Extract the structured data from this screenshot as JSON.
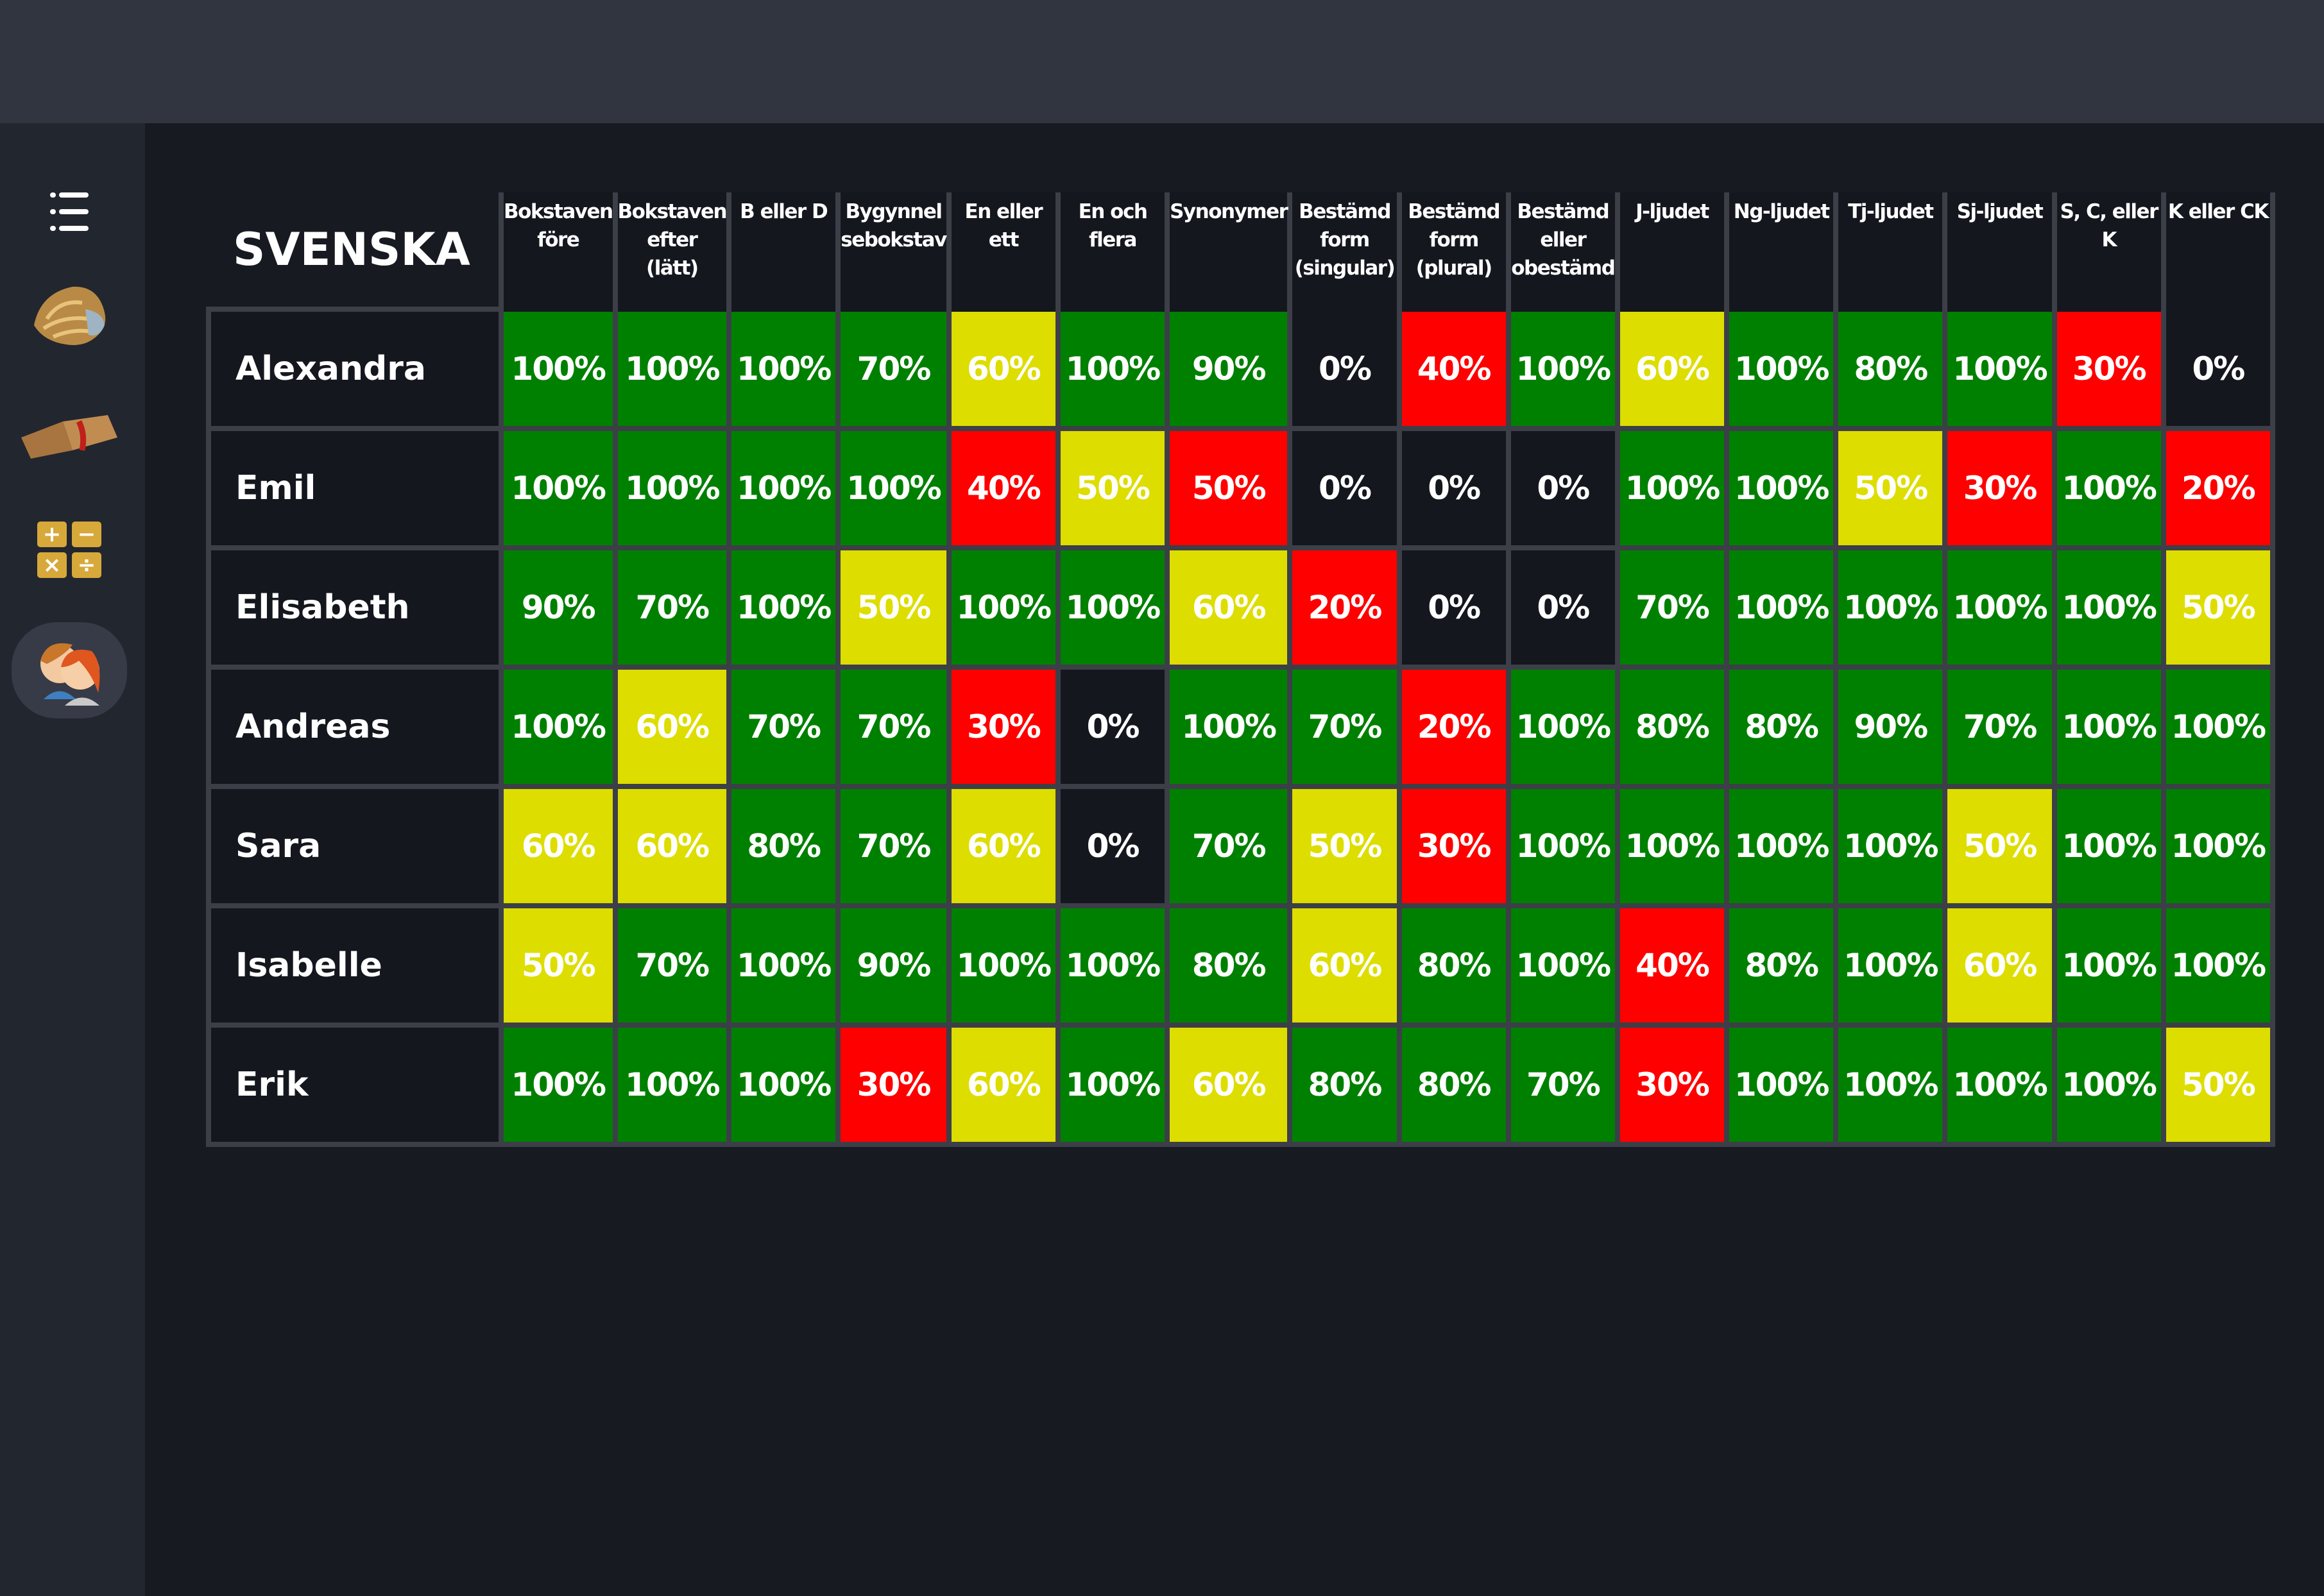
{
  "sidebar": {
    "items": [
      {
        "name": "menu-icon"
      },
      {
        "name": "lion-icon"
      },
      {
        "name": "book-icon"
      },
      {
        "name": "math-icon",
        "symbols": [
          "+",
          "−",
          "×",
          "÷"
        ]
      },
      {
        "name": "students-icon",
        "active": true
      }
    ]
  },
  "colors": {
    "green": "#008000",
    "yellow": "#dddd00",
    "red": "#ff0000",
    "none": "#15171f"
  },
  "table": {
    "title": "SVENSKA",
    "columns": [
      "Bokstaven\nföre",
      "Bokstaven\nefter\n(lätt)",
      "B eller D",
      "Bygynnel\nsebokstav",
      "En eller\nett",
      "En och\nflera",
      "Synonymer",
      "Bestämd\nform\n(singular)",
      "Bestämd\nform\n(plural)",
      "Bestämd\neller\nobestämd",
      "J-ljudet",
      "Ng-ljudet",
      "Tj-ljudet",
      "Sj-ljudet",
      "S, C, eller\nK",
      "K eller CK"
    ],
    "rows": [
      {
        "name": "Alexandra",
        "values": [
          "100%",
          "100%",
          "100%",
          "70%",
          "60%",
          "100%",
          "90%",
          "0%",
          "40%",
          "100%",
          "60%",
          "100%",
          "80%",
          "100%",
          "30%",
          "0%"
        ],
        "status": [
          "g",
          "g",
          "g",
          "g",
          "y",
          "g",
          "g",
          "d",
          "r",
          "g",
          "y",
          "g",
          "g",
          "g",
          "r",
          "d"
        ]
      },
      {
        "name": "Emil",
        "values": [
          "100%",
          "100%",
          "100%",
          "100%",
          "40%",
          "50%",
          "50%",
          "0%",
          "0%",
          "0%",
          "100%",
          "100%",
          "50%",
          "30%",
          "100%",
          "20%"
        ],
        "status": [
          "g",
          "g",
          "g",
          "g",
          "r",
          "y",
          "r",
          "d",
          "d",
          "d",
          "g",
          "g",
          "y",
          "r",
          "g",
          "r"
        ]
      },
      {
        "name": "Elisabeth",
        "values": [
          "90%",
          "70%",
          "100%",
          "50%",
          "100%",
          "100%",
          "60%",
          "20%",
          "0%",
          "0%",
          "70%",
          "100%",
          "100%",
          "100%",
          "100%",
          "50%"
        ],
        "status": [
          "g",
          "g",
          "g",
          "y",
          "g",
          "g",
          "y",
          "r",
          "d",
          "d",
          "g",
          "g",
          "g",
          "g",
          "g",
          "y"
        ]
      },
      {
        "name": "Andreas",
        "values": [
          "100%",
          "60%",
          "70%",
          "70%",
          "30%",
          "0%",
          "100%",
          "70%",
          "20%",
          "100%",
          "80%",
          "80%",
          "90%",
          "70%",
          "100%",
          "100%"
        ],
        "status": [
          "g",
          "y",
          "g",
          "g",
          "r",
          "d",
          "g",
          "g",
          "r",
          "g",
          "g",
          "g",
          "g",
          "g",
          "g",
          "g"
        ]
      },
      {
        "name": "Sara",
        "values": [
          "60%",
          "60%",
          "80%",
          "70%",
          "60%",
          "0%",
          "70%",
          "50%",
          "30%",
          "100%",
          "100%",
          "100%",
          "100%",
          "50%",
          "100%",
          "100%"
        ],
        "status": [
          "y",
          "y",
          "g",
          "g",
          "y",
          "d",
          "g",
          "y",
          "r",
          "g",
          "g",
          "g",
          "g",
          "y",
          "g",
          "g"
        ]
      },
      {
        "name": "Isabelle",
        "values": [
          "50%",
          "70%",
          "100%",
          "90%",
          "100%",
          "100%",
          "80%",
          "60%",
          "80%",
          "100%",
          "40%",
          "80%",
          "100%",
          "60%",
          "100%",
          "100%"
        ],
        "status": [
          "y",
          "g",
          "g",
          "g",
          "g",
          "g",
          "g",
          "y",
          "g",
          "g",
          "r",
          "g",
          "g",
          "y",
          "g",
          "g"
        ]
      },
      {
        "name": "Erik",
        "values": [
          "100%",
          "100%",
          "100%",
          "30%",
          "60%",
          "100%",
          "60%",
          "80%",
          "80%",
          "70%",
          "30%",
          "100%",
          "100%",
          "100%",
          "100%",
          "50%"
        ],
        "status": [
          "g",
          "g",
          "g",
          "r",
          "y",
          "g",
          "y",
          "g",
          "g",
          "g",
          "r",
          "g",
          "g",
          "g",
          "g",
          "y"
        ]
      }
    ]
  }
}
